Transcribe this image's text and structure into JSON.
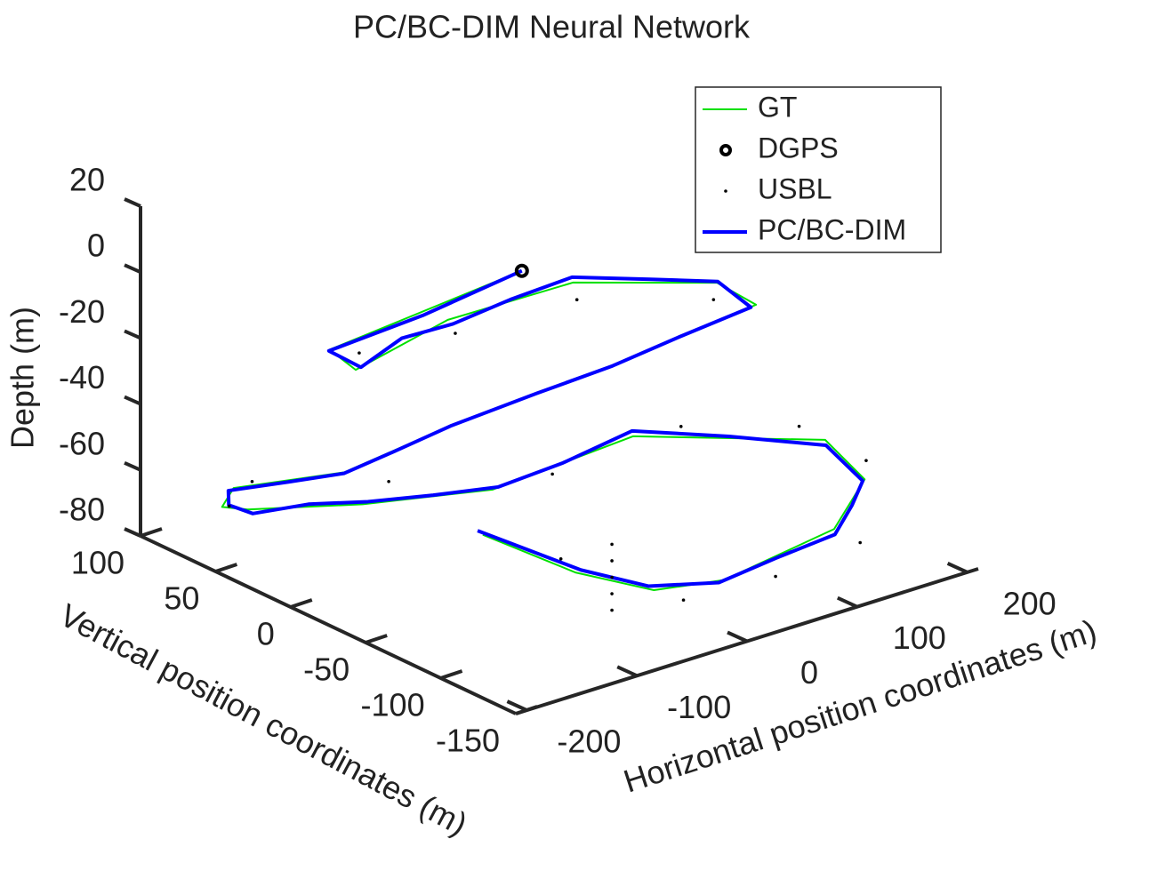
{
  "chart_data": {
    "type": "line3d",
    "title": "PC/BC-DIM Neural Network",
    "xlabel": "Horizontal position coordinates (m)",
    "ylabel": "Vertical position coordinates (m)",
    "zlabel": "Depth (m)",
    "xlim": [
      -210,
      210
    ],
    "xticks": [
      -200,
      -100,
      0,
      100,
      200
    ],
    "ylim": [
      -150,
      100
    ],
    "yticks": [
      -150,
      -100,
      -50,
      0,
      50,
      100
    ],
    "zlim": [
      -80,
      20
    ],
    "zticks": [
      -80,
      -60,
      -40,
      -20,
      0,
      20
    ],
    "legend": "upper right",
    "series": [
      {
        "name": "GT",
        "style": "line",
        "color": "#00e000",
        "x": [
          0,
          -120,
          -110,
          -40,
          60,
          150,
          165,
          60,
          -60,
          -120,
          -180,
          -170,
          -140,
          -90,
          -40,
          60,
          180,
          175,
          120,
          20,
          -30,
          -60,
          -90
        ],
        "y": [
          0,
          40,
          30,
          20,
          10,
          -20,
          -35,
          -20,
          0,
          30,
          60,
          75,
          80,
          40,
          -10,
          -30,
          -70,
          -100,
          -120,
          -120,
          -110,
          -80,
          -40
        ],
        "z": [
          0,
          -20,
          -25,
          -15,
          -12,
          -15,
          -20,
          -30,
          -40,
          -55,
          -60,
          -70,
          -75,
          -70,
          -60,
          -50,
          -55,
          -60,
          -65,
          -70,
          -70,
          -68,
          -62
        ]
      },
      {
        "name": "DGPS",
        "style": "circle",
        "color": "#000000",
        "x": [
          0
        ],
        "y": [
          0
        ],
        "z": [
          0
        ]
      },
      {
        "name": "USBL",
        "style": "dot",
        "color": "#000000",
        "x": [
          -100,
          -40,
          50,
          140,
          -170,
          -150,
          -80,
          -20,
          90,
          170,
          190,
          130,
          60,
          -10,
          -60,
          0,
          0,
          0,
          0,
          0
        ],
        "y": [
          35,
          15,
          0,
          -25,
          55,
          85,
          30,
          -35,
          -40,
          -60,
          -90,
          -130,
          -125,
          -115,
          -70,
          -60,
          -60,
          -60,
          -60,
          -60
        ],
        "z": [
          -22,
          -18,
          -14,
          -18,
          -58,
          -74,
          -62,
          -52,
          -48,
          -52,
          -58,
          -68,
          -72,
          -74,
          -66,
          -70,
          -75,
          -80,
          -85,
          -90
        ]
      },
      {
        "name": "PC/BC-DIM",
        "style": "line",
        "color": "#0000ff",
        "x": [
          0,
          -60,
          -118,
          -108,
          -75,
          -38,
          10,
          62,
          110,
          148,
          163,
          110,
          58,
          0,
          -62,
          -95,
          -118,
          -150,
          -182,
          -168,
          -138,
          -112,
          -88,
          -60,
          -38,
          10,
          62,
          120,
          178,
          176,
          150,
          118,
          70,
          18,
          -32,
          -58,
          -92
        ],
        "y": [
          0,
          22,
          42,
          28,
          25,
          18,
          15,
          12,
          -5,
          -22,
          -33,
          -25,
          -18,
          -10,
          2,
          15,
          32,
          45,
          62,
          72,
          78,
          60,
          38,
          15,
          -12,
          -20,
          -28,
          -50,
          -72,
          -98,
          -110,
          -122,
          -118,
          -118,
          -108,
          -82,
          -38
        ],
        "z": [
          0,
          -12,
          -21,
          -24,
          -18,
          -16,
          -13,
          -11,
          -13,
          -14,
          -21,
          -26,
          -31,
          -35,
          -41,
          -48,
          -56,
          -58,
          -61,
          -69,
          -76,
          -72,
          -69,
          -65,
          -59,
          -55,
          -49,
          -52,
          -56,
          -61,
          -63,
          -66,
          -69,
          -71,
          -69,
          -67,
          -61
        ]
      }
    ]
  }
}
